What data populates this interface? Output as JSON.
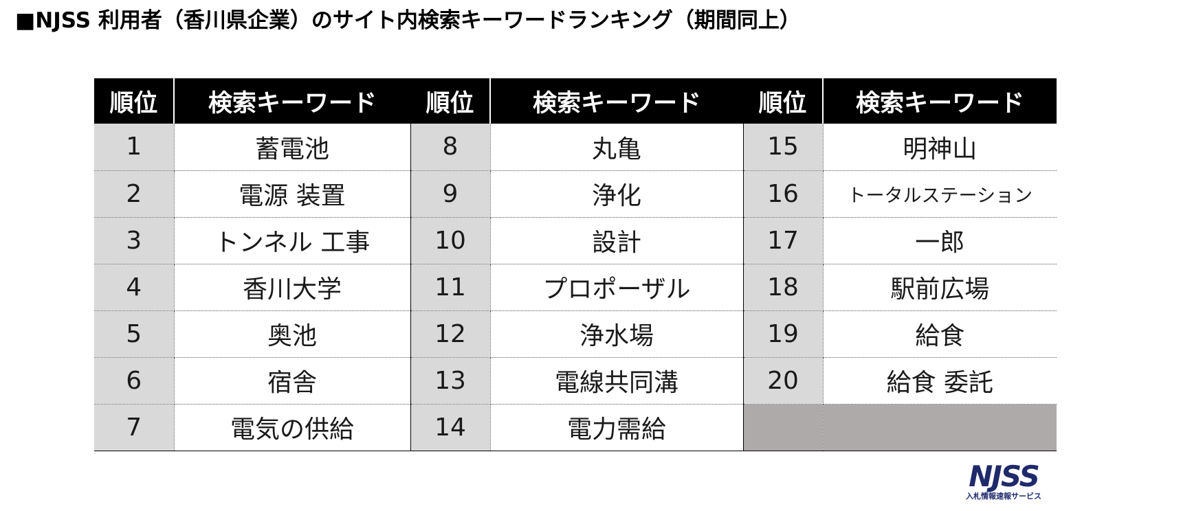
{
  "title": "■NJSS 利用者（香川県企業）のサイト内検索キーワードランキング（期間同上）",
  "table": {
    "headers": {
      "rank": "順位",
      "keyword": "検索キーワード"
    },
    "rows": [
      [
        {
          "rank": "1",
          "keyword": "蓄電池"
        },
        {
          "rank": "8",
          "keyword": "丸亀"
        },
        {
          "rank": "15",
          "keyword": "明神山"
        }
      ],
      [
        {
          "rank": "2",
          "keyword": "電源 装置"
        },
        {
          "rank": "9",
          "keyword": "浄化"
        },
        {
          "rank": "16",
          "keyword": "トータルステーション"
        }
      ],
      [
        {
          "rank": "3",
          "keyword": "トンネル 工事"
        },
        {
          "rank": "10",
          "keyword": "設計"
        },
        {
          "rank": "17",
          "keyword": "一郎"
        }
      ],
      [
        {
          "rank": "4",
          "keyword": "香川大学"
        },
        {
          "rank": "11",
          "keyword": "プロポーザル"
        },
        {
          "rank": "18",
          "keyword": "駅前広場"
        }
      ],
      [
        {
          "rank": "5",
          "keyword": "奥池"
        },
        {
          "rank": "12",
          "keyword": "浄水場"
        },
        {
          "rank": "19",
          "keyword": "給食"
        }
      ],
      [
        {
          "rank": "6",
          "keyword": "宿舎"
        },
        {
          "rank": "13",
          "keyword": "電線共同溝"
        },
        {
          "rank": "20",
          "keyword": "給食 委託"
        }
      ],
      [
        {
          "rank": "7",
          "keyword": "電気の供給"
        },
        {
          "rank": "14",
          "keyword": "電力需給"
        },
        {
          "rank": "",
          "keyword": ""
        }
      ]
    ]
  },
  "logo": {
    "mark": "NJSS",
    "subtitle": "入札情報速報サービス",
    "color": "#1f2a6b"
  }
}
